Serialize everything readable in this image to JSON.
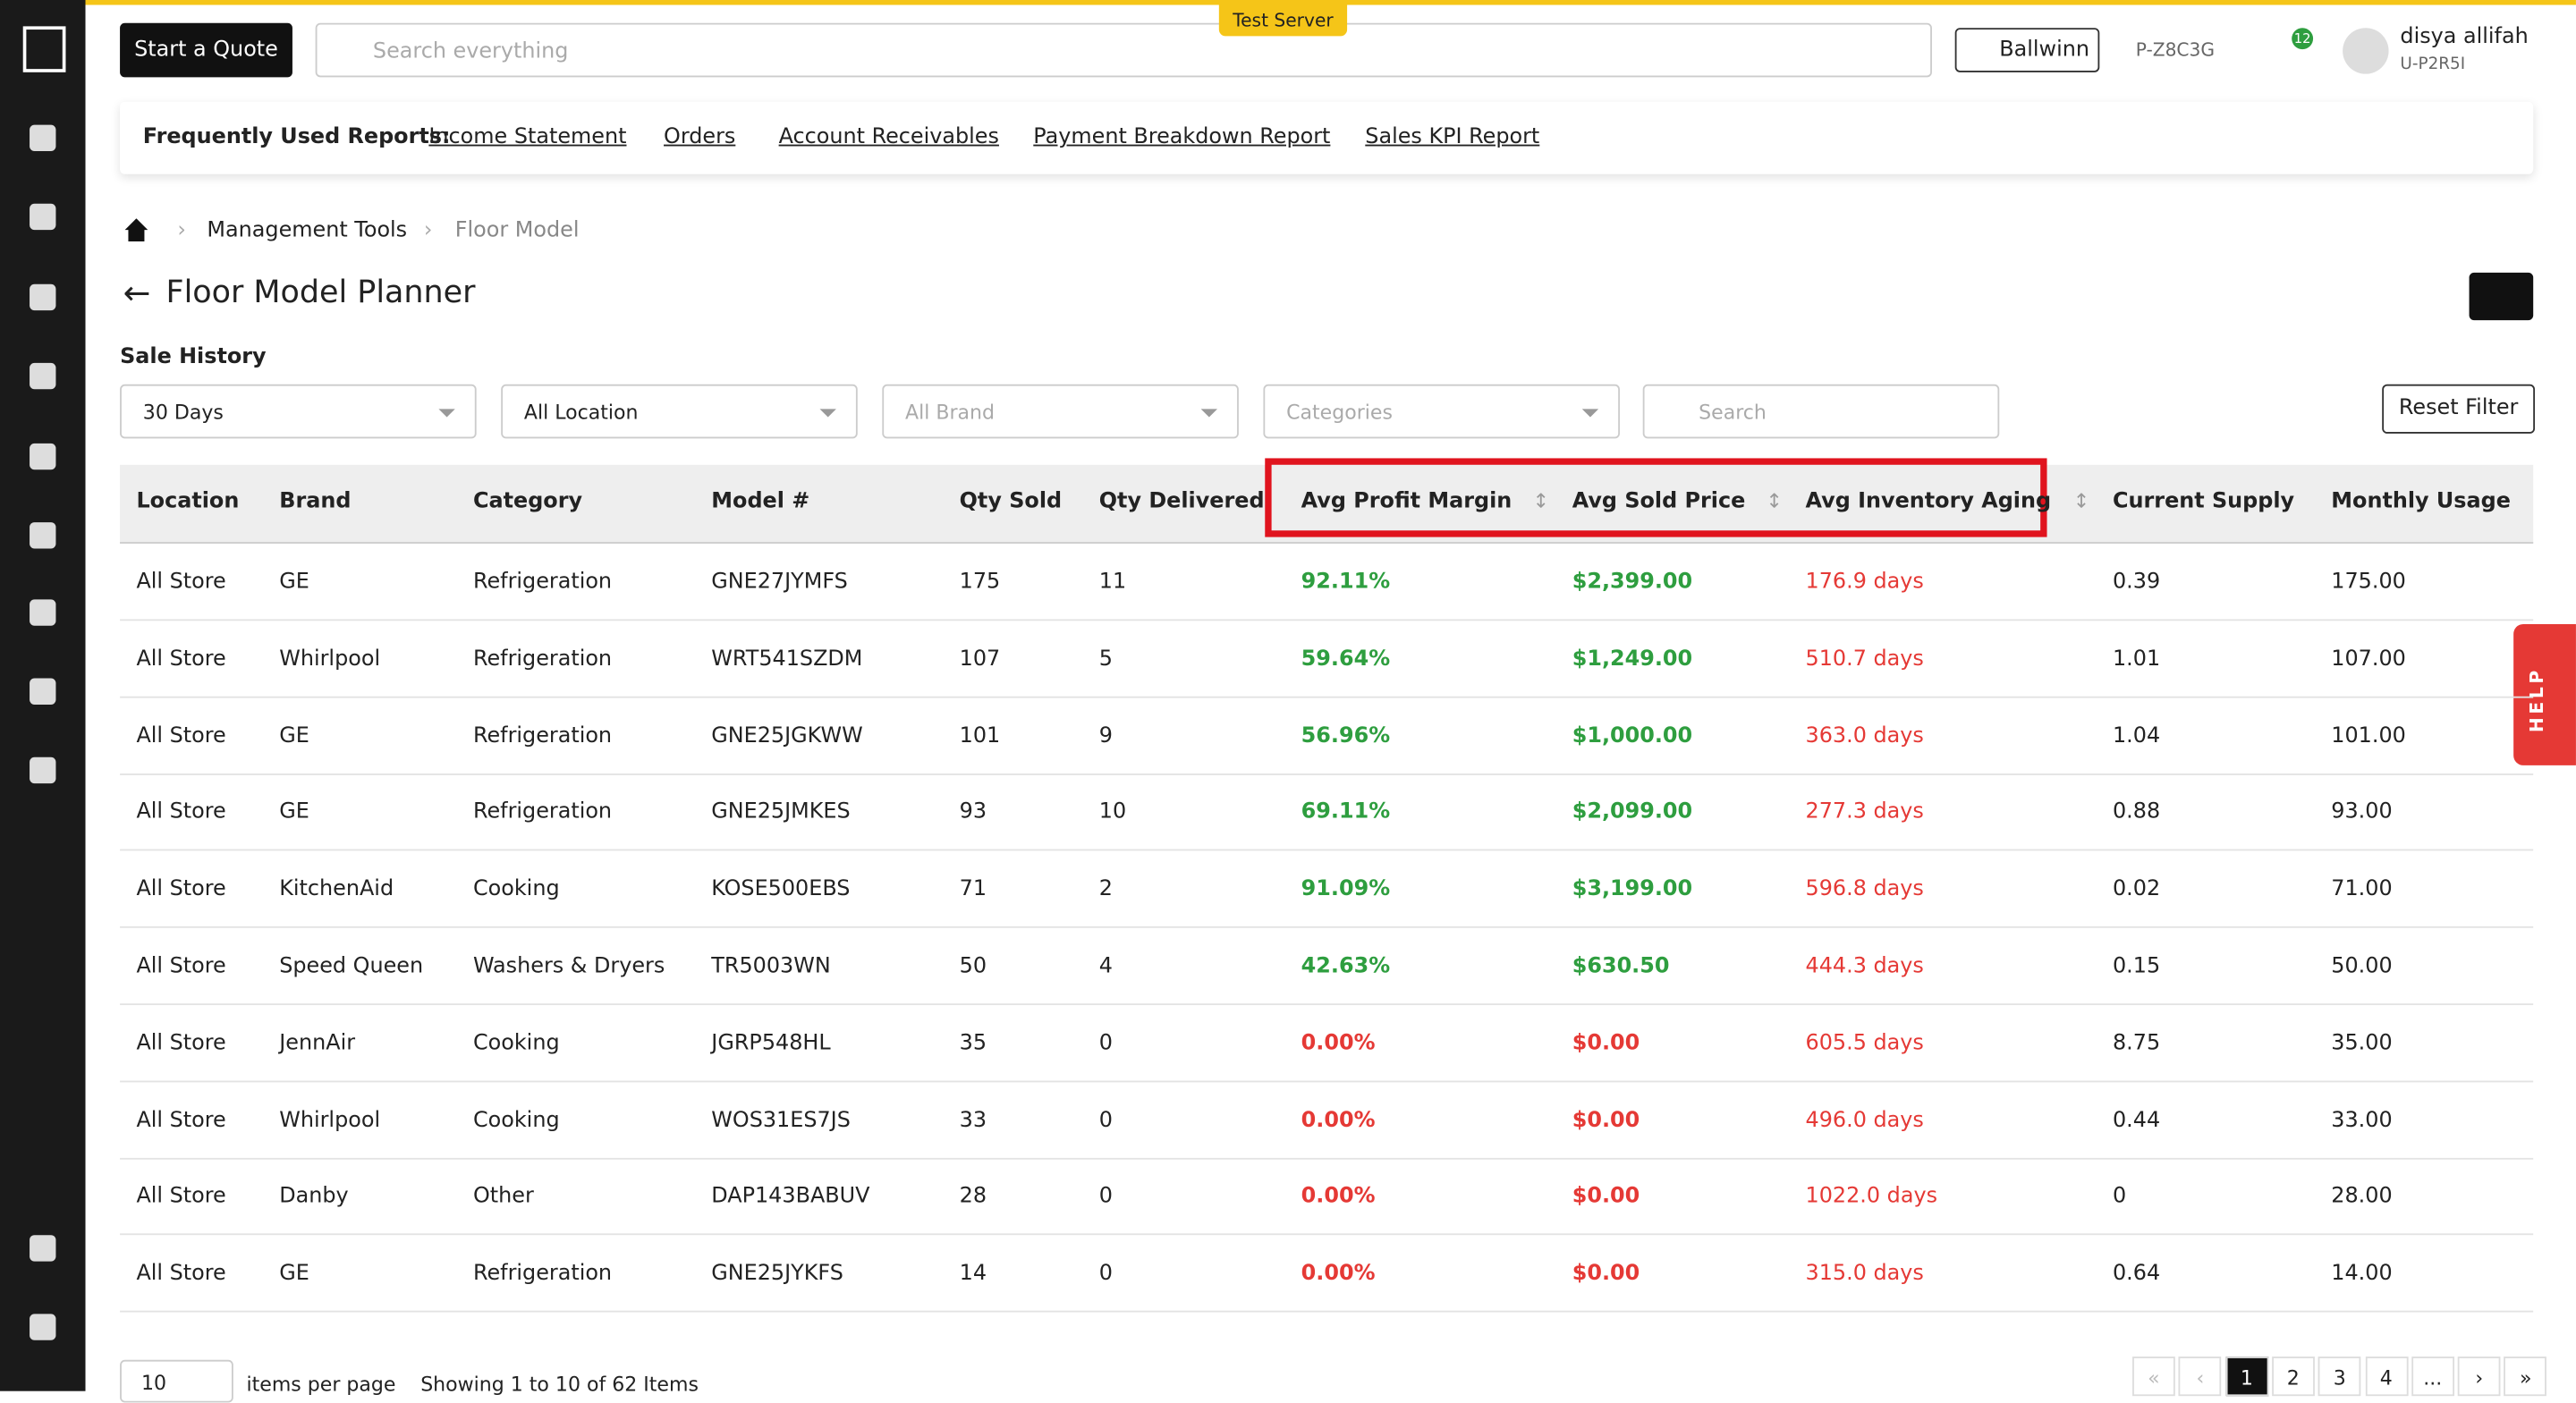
{
  "header": {
    "start_quote": "Start a Quote",
    "search_placeholder": "Search everything",
    "server_badge": "Test Server",
    "location": "Ballwinn",
    "code": "P-Z8C3G",
    "notifications": "12",
    "user_name": "disya allifah",
    "user_id": "U-P2R5I"
  },
  "reports": {
    "label": "Frequently Used Reports:",
    "links": [
      "Income Statement",
      "Orders",
      "Account Receivables",
      "Payment Breakdown Report",
      "Sales KPI Report"
    ]
  },
  "breadcrumb": [
    "Management Tools",
    "Floor Model"
  ],
  "title": "Floor Model Planner",
  "section": "Sale History",
  "filters": {
    "selects": [
      "30 Days",
      "All Location",
      "All Brand",
      "Categories"
    ],
    "search": "Search",
    "reset": "Reset Filter"
  },
  "table": {
    "columns": [
      "Location",
      "Brand",
      "Category",
      "Model #",
      "Qty Sold",
      "Qty Delivered",
      "Avg Profit Margin",
      "Avg Sold Price",
      "Avg Inventory Aging",
      "Current Supply",
      "Monthly Usage"
    ],
    "rows": [
      [
        "All Store",
        "GE",
        "Refrigeration",
        "GNE27JYMFS",
        "175",
        "11",
        "92.11%",
        "$2,399.00",
        "176.9 days",
        "0.39",
        "175.00"
      ],
      [
        "All Store",
        "Whirlpool",
        "Refrigeration",
        "WRT541SZDM",
        "107",
        "5",
        "59.64%",
        "$1,249.00",
        "510.7 days",
        "1.01",
        "107.00"
      ],
      [
        "All Store",
        "GE",
        "Refrigeration",
        "GNE25JGKWW",
        "101",
        "9",
        "56.96%",
        "$1,000.00",
        "363.0 days",
        "1.04",
        "101.00"
      ],
      [
        "All Store",
        "GE",
        "Refrigeration",
        "GNE25JMKES",
        "93",
        "10",
        "69.11%",
        "$2,099.00",
        "277.3 days",
        "0.88",
        "93.00"
      ],
      [
        "All Store",
        "KitchenAid",
        "Cooking",
        "KOSE500EBS",
        "71",
        "2",
        "91.09%",
        "$3,199.00",
        "596.8 days",
        "0.02",
        "71.00"
      ],
      [
        "All Store",
        "Speed Queen",
        "Washers & Dryers",
        "TR5003WN",
        "50",
        "4",
        "42.63%",
        "$630.50",
        "444.3 days",
        "0.15",
        "50.00"
      ],
      [
        "All Store",
        "JennAir",
        "Cooking",
        "JGRP548HL",
        "35",
        "0",
        "0.00%",
        "$0.00",
        "605.5 days",
        "8.75",
        "35.00"
      ],
      [
        "All Store",
        "Whirlpool",
        "Cooking",
        "WOS31ES7JS",
        "33",
        "0",
        "0.00%",
        "$0.00",
        "496.0 days",
        "0.44",
        "33.00"
      ],
      [
        "All Store",
        "Danby",
        "Other",
        "DAP143BABUV",
        "28",
        "0",
        "0.00%",
        "$0.00",
        "1022.0 days",
        "0",
        "28.00"
      ],
      [
        "All Store",
        "GE",
        "Refrigeration",
        "GNE25JYKFS",
        "14",
        "0",
        "0.00%",
        "$0.00",
        "315.0 days",
        "0.64",
        "14.00"
      ]
    ]
  },
  "footer": {
    "per_page": "10",
    "per_page_label": "items per page",
    "showing": "Showing 1 to 10 of 62 Items",
    "pages": [
      "«",
      "‹",
      "1",
      "2",
      "3",
      "4",
      "...",
      "›",
      "»"
    ]
  },
  "help": "HELP"
}
